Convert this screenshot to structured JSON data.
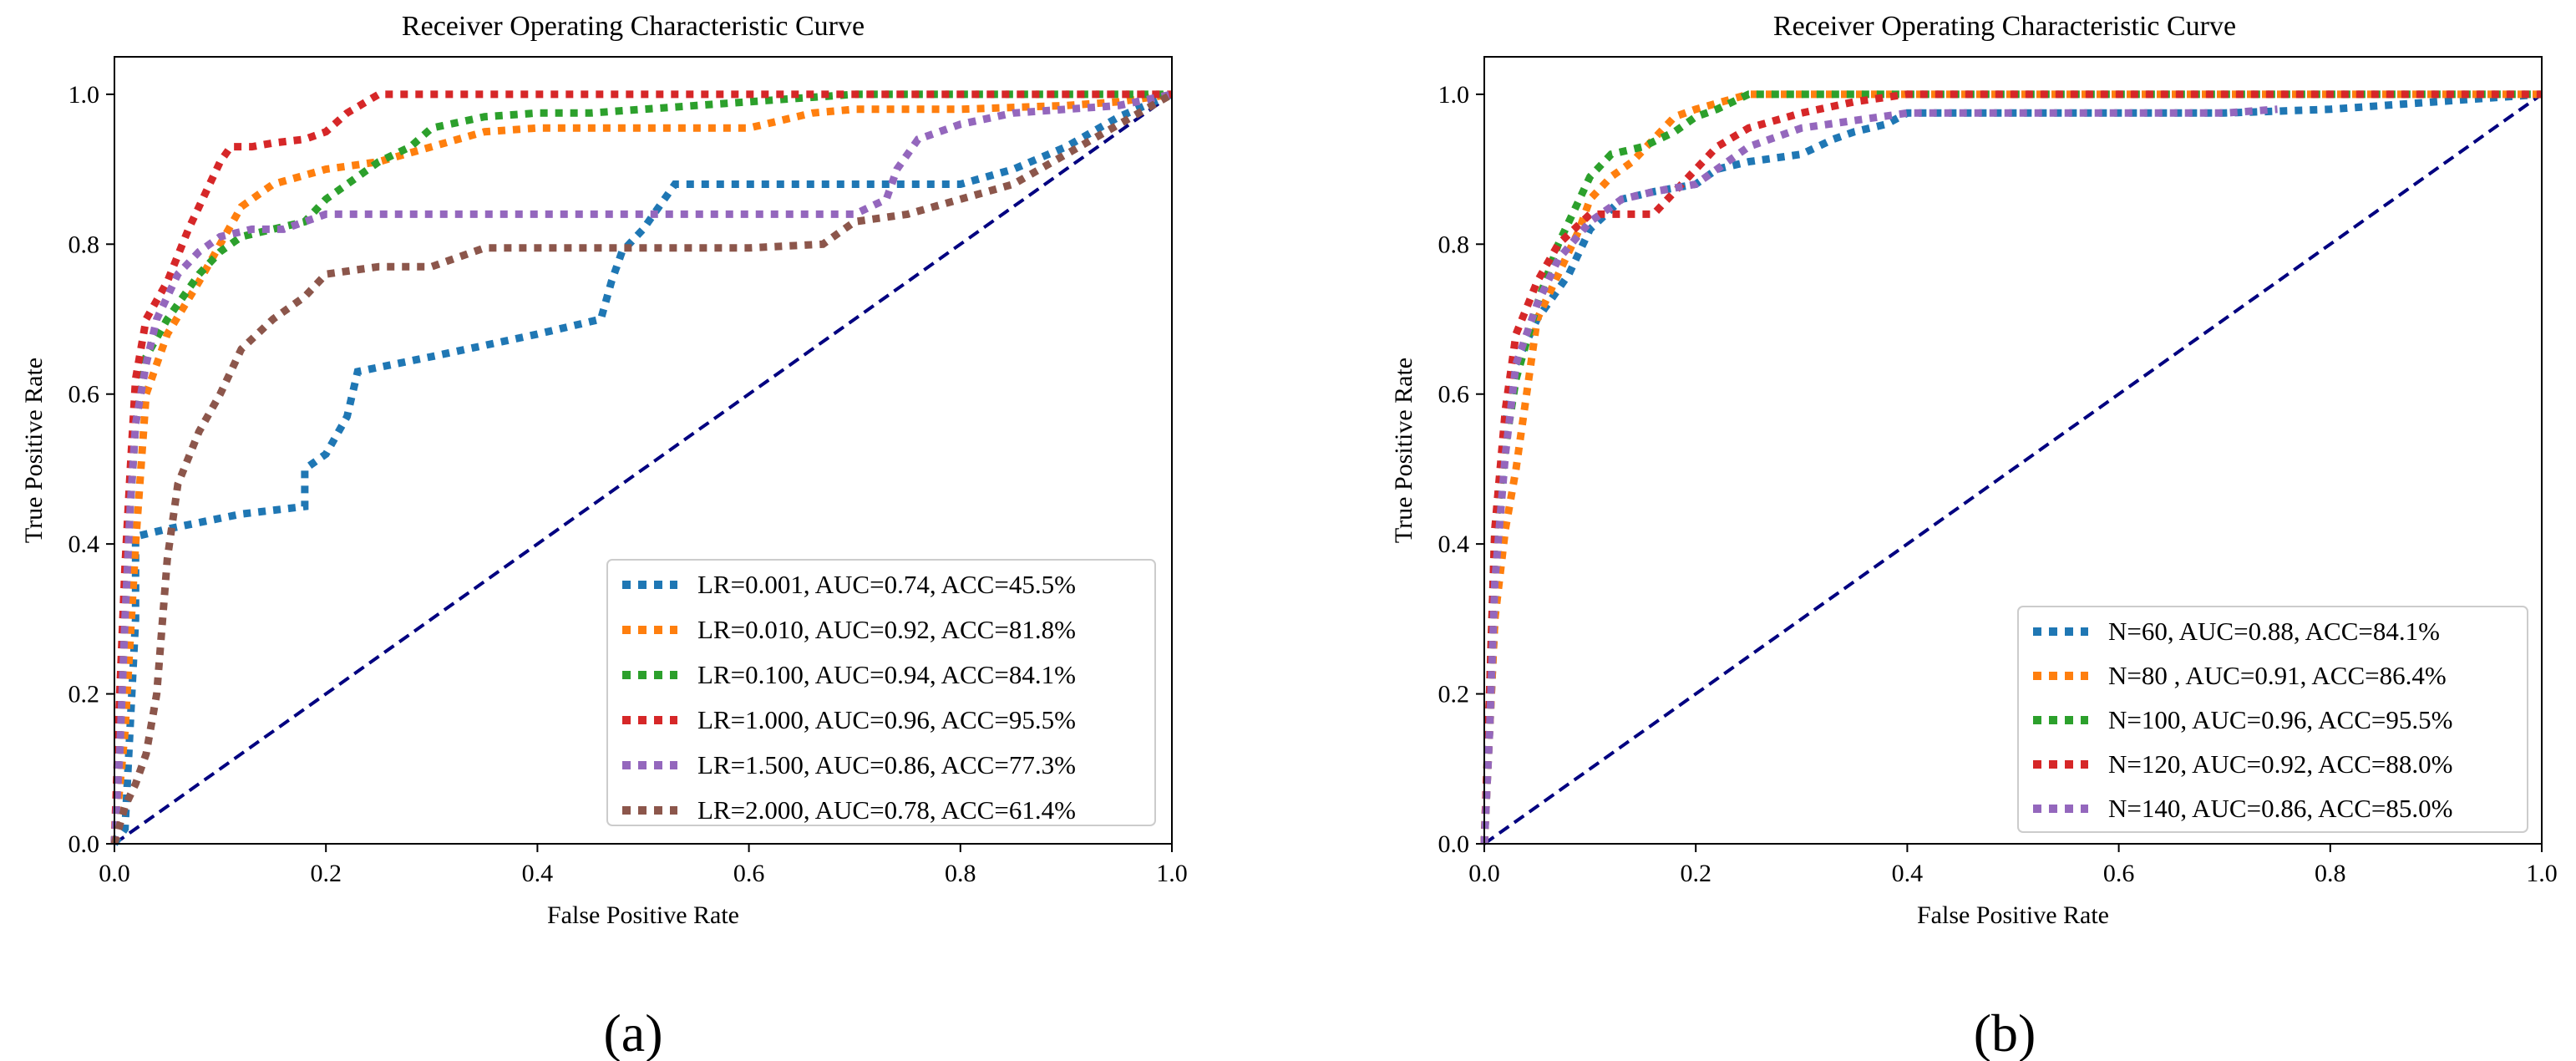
{
  "chart_data": [
    {
      "panel": "(a)",
      "type": "line",
      "title": "Receiver Operating Characteristic Curve",
      "xlabel": "False Positive Rate",
      "ylabel": "True Positive Rate",
      "xlim": [
        0,
        1
      ],
      "ylim": [
        0,
        1.05
      ],
      "xticks": [
        "0.0",
        "0.2",
        "0.4",
        "0.6",
        "0.8",
        "1.0"
      ],
      "yticks": [
        "0.0",
        "0.2",
        "0.4",
        "0.6",
        "0.8",
        "1.0"
      ],
      "legend_position": "lower-right",
      "grid": false,
      "diagonal": {
        "x": [
          0,
          1
        ],
        "y": [
          0,
          1
        ],
        "color": "#000080"
      },
      "series": [
        {
          "name": "LR=0.001, AUC=0.74, ACC=45.5%",
          "color": "#1f77b4",
          "x": [
            0,
            0.01,
            0.02,
            0.02,
            0.05,
            0.12,
            0.18,
            0.18,
            0.2,
            0.22,
            0.23,
            0.3,
            0.4,
            0.46,
            0.47,
            0.48,
            0.5,
            0.52,
            0.53,
            0.6,
            0.7,
            0.8,
            0.85,
            0.9,
            0.95,
            1.0
          ],
          "y": [
            0,
            0.02,
            0.3,
            0.41,
            0.42,
            0.44,
            0.45,
            0.5,
            0.52,
            0.57,
            0.63,
            0.65,
            0.68,
            0.7,
            0.75,
            0.79,
            0.82,
            0.86,
            0.88,
            0.88,
            0.88,
            0.88,
            0.9,
            0.93,
            0.97,
            1.0
          ]
        },
        {
          "name": "LR=0.010, AUC=0.92, ACC=81.8%",
          "color": "#ff7f0e",
          "x": [
            0,
            0.01,
            0.02,
            0.03,
            0.05,
            0.08,
            0.1,
            0.12,
            0.15,
            0.2,
            0.25,
            0.3,
            0.35,
            0.4,
            0.45,
            0.5,
            0.6,
            0.63,
            0.66,
            0.7,
            0.8,
            0.9,
            0.95,
            1.0
          ],
          "y": [
            0,
            0.15,
            0.4,
            0.6,
            0.68,
            0.75,
            0.8,
            0.85,
            0.88,
            0.9,
            0.91,
            0.93,
            0.95,
            0.955,
            0.955,
            0.955,
            0.955,
            0.965,
            0.975,
            0.98,
            0.98,
            0.985,
            0.99,
            1.0
          ]
        },
        {
          "name": "LR=0.100, AUC=0.94, ACC=84.1%",
          "color": "#2ca02c",
          "x": [
            0,
            0.005,
            0.01,
            0.015,
            0.02,
            0.03,
            0.05,
            0.08,
            0.1,
            0.12,
            0.15,
            0.18,
            0.2,
            0.22,
            0.25,
            0.28,
            0.3,
            0.35,
            0.4,
            0.45,
            0.5,
            0.6,
            0.7,
            0.8,
            0.9,
            1.0
          ],
          "y": [
            0,
            0.15,
            0.32,
            0.45,
            0.56,
            0.65,
            0.7,
            0.76,
            0.79,
            0.81,
            0.82,
            0.83,
            0.86,
            0.88,
            0.91,
            0.93,
            0.955,
            0.97,
            0.975,
            0.975,
            0.98,
            0.99,
            1.0,
            1.0,
            1.0,
            1.0
          ]
        },
        {
          "name": "LR=1.000, AUC=0.96, ACC=95.5%",
          "color": "#d62728",
          "x": [
            0,
            0.005,
            0.01,
            0.015,
            0.02,
            0.03,
            0.05,
            0.07,
            0.09,
            0.1,
            0.11,
            0.13,
            0.15,
            0.18,
            0.2,
            0.22,
            0.25,
            0.3,
            0.4,
            0.5,
            0.6,
            0.7,
            0.8,
            0.9,
            1.0
          ],
          "y": [
            0,
            0.2,
            0.37,
            0.5,
            0.62,
            0.7,
            0.75,
            0.82,
            0.88,
            0.91,
            0.93,
            0.93,
            0.935,
            0.94,
            0.95,
            0.975,
            1.0,
            1.0,
            1.0,
            1.0,
            1.0,
            1.0,
            1.0,
            1.0,
            1.0
          ]
        },
        {
          "name": "LR=1.500, AUC=0.86, ACC=77.3%",
          "color": "#9467bd",
          "x": [
            0,
            0.005,
            0.01,
            0.015,
            0.02,
            0.03,
            0.04,
            0.06,
            0.08,
            0.1,
            0.13,
            0.16,
            0.2,
            0.3,
            0.4,
            0.5,
            0.6,
            0.7,
            0.73,
            0.74,
            0.76,
            0.8,
            0.85,
            0.9,
            0.95,
            1.0
          ],
          "y": [
            0,
            0.12,
            0.3,
            0.45,
            0.56,
            0.64,
            0.7,
            0.76,
            0.79,
            0.81,
            0.82,
            0.82,
            0.84,
            0.84,
            0.84,
            0.84,
            0.84,
            0.84,
            0.86,
            0.9,
            0.94,
            0.96,
            0.975,
            0.98,
            0.985,
            1.0
          ]
        },
        {
          "name": "LR=2.000, AUC=0.78, ACC=61.4%",
          "color": "#8c564b",
          "x": [
            0,
            0.01,
            0.02,
            0.03,
            0.04,
            0.05,
            0.06,
            0.08,
            0.1,
            0.12,
            0.15,
            0.18,
            0.2,
            0.25,
            0.3,
            0.35,
            0.4,
            0.5,
            0.6,
            0.67,
            0.7,
            0.75,
            0.8,
            0.85,
            0.9,
            0.95,
            1.0
          ],
          "y": [
            0,
            0.05,
            0.08,
            0.12,
            0.2,
            0.38,
            0.48,
            0.55,
            0.6,
            0.66,
            0.7,
            0.73,
            0.76,
            0.77,
            0.77,
            0.795,
            0.795,
            0.795,
            0.795,
            0.8,
            0.83,
            0.84,
            0.86,
            0.88,
            0.92,
            0.96,
            1.0
          ]
        }
      ]
    },
    {
      "panel": "(b)",
      "type": "line",
      "title": "Receiver Operating Characteristic Curve",
      "xlabel": "False Positive Rate",
      "ylabel": "True Positive Rate",
      "xlim": [
        0,
        1
      ],
      "ylim": [
        0,
        1.05
      ],
      "xticks": [
        "0.0",
        "0.2",
        "0.4",
        "0.6",
        "0.8",
        "1.0"
      ],
      "yticks": [
        "0.0",
        "0.2",
        "0.4",
        "0.6",
        "0.8",
        "1.0"
      ],
      "legend_position": "lower-right",
      "grid": false,
      "diagonal": {
        "x": [
          0,
          1
        ],
        "y": [
          0,
          1
        ],
        "color": "#000080"
      },
      "series": [
        {
          "name": "N=60,  AUC=0.88, ACC=84.1%",
          "color": "#1f77b4",
          "x": [
            0,
            0.005,
            0.01,
            0.015,
            0.02,
            0.03,
            0.05,
            0.08,
            0.1,
            0.13,
            0.16,
            0.2,
            0.22,
            0.25,
            0.3,
            0.33,
            0.35,
            0.38,
            0.4,
            0.5,
            0.6,
            0.7,
            0.8,
            0.9,
            1.0
          ],
          "y": [
            0,
            0.15,
            0.3,
            0.45,
            0.56,
            0.64,
            0.7,
            0.76,
            0.82,
            0.86,
            0.87,
            0.88,
            0.9,
            0.91,
            0.92,
            0.94,
            0.95,
            0.96,
            0.975,
            0.975,
            0.975,
            0.975,
            0.98,
            0.99,
            1.0
          ]
        },
        {
          "name": "N=80 , AUC=0.91, ACC=86.4%",
          "color": "#ff7f0e",
          "x": [
            0,
            0.005,
            0.01,
            0.02,
            0.03,
            0.04,
            0.05,
            0.07,
            0.09,
            0.1,
            0.12,
            0.14,
            0.16,
            0.18,
            0.2,
            0.25,
            0.3,
            0.4,
            0.5,
            0.6,
            0.7,
            0.8,
            0.9,
            1.0
          ],
          "y": [
            0,
            0.15,
            0.3,
            0.42,
            0.5,
            0.6,
            0.7,
            0.76,
            0.82,
            0.86,
            0.89,
            0.91,
            0.94,
            0.97,
            0.98,
            1.0,
            1.0,
            1.0,
            1.0,
            1.0,
            1.0,
            1.0,
            1.0,
            1.0
          ]
        },
        {
          "name": "N=100, AUC=0.96, ACC=95.5%",
          "color": "#2ca02c",
          "x": [
            0,
            0.005,
            0.01,
            0.02,
            0.03,
            0.05,
            0.07,
            0.09,
            0.1,
            0.12,
            0.15,
            0.18,
            0.2,
            0.22,
            0.25,
            0.3,
            0.4,
            0.5,
            0.6,
            0.7,
            0.8,
            0.9,
            1.0
          ],
          "y": [
            0,
            0.2,
            0.42,
            0.53,
            0.62,
            0.72,
            0.8,
            0.86,
            0.89,
            0.92,
            0.93,
            0.95,
            0.97,
            0.98,
            1.0,
            1.0,
            1.0,
            1.0,
            1.0,
            1.0,
            1.0,
            1.0,
            1.0
          ]
        },
        {
          "name": "N=120, AUC=0.92, ACC=88.0%",
          "color": "#d62728",
          "x": [
            0,
            0.005,
            0.01,
            0.02,
            0.03,
            0.05,
            0.07,
            0.1,
            0.13,
            0.16,
            0.18,
            0.2,
            0.22,
            0.25,
            0.3,
            0.35,
            0.4,
            0.5,
            0.6,
            0.7,
            0.8,
            0.9,
            1.0
          ],
          "y": [
            0,
            0.2,
            0.42,
            0.58,
            0.68,
            0.75,
            0.8,
            0.84,
            0.84,
            0.84,
            0.87,
            0.9,
            0.93,
            0.955,
            0.975,
            0.99,
            1.0,
            1.0,
            1.0,
            1.0,
            1.0,
            1.0,
            1.0
          ]
        },
        {
          "name": "N=140, AUC=0.86, ACC=85.0%",
          "color": "#9467bd",
          "x": [
            0,
            0.005,
            0.01,
            0.02,
            0.03,
            0.05,
            0.07,
            0.1,
            0.13,
            0.16,
            0.2,
            0.25,
            0.3,
            0.35,
            0.4,
            0.5,
            0.6,
            0.7,
            0.75
          ],
          "y": [
            0,
            0.15,
            0.35,
            0.52,
            0.64,
            0.72,
            0.78,
            0.83,
            0.86,
            0.87,
            0.88,
            0.93,
            0.955,
            0.965,
            0.975,
            0.975,
            0.975,
            0.975,
            0.98
          ]
        }
      ]
    }
  ]
}
